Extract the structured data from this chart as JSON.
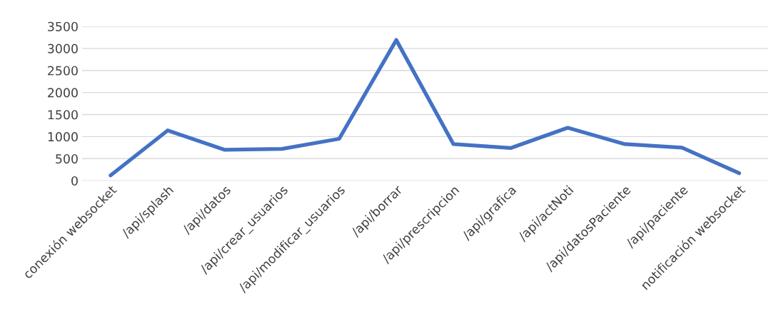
{
  "chart_data": {
    "type": "line",
    "categories": [
      "conexión websocket",
      "/api/splash",
      "/api/datos",
      "/api/crear_usuarios",
      "/api/modificar_usuarios",
      "/api/borrar",
      "/api/prescripcion",
      "/api/grafica",
      "/api/actNoti",
      "/api/datosPaciente",
      "/api/paciente",
      "notificación websocket"
    ],
    "series": [
      {
        "color": "#4472c4",
        "values": [
          120,
          1140,
          700,
          720,
          950,
          3190,
          830,
          740,
          1200,
          830,
          750,
          170
        ]
      }
    ],
    "ylim": [
      0,
      3500
    ],
    "yticks": [
      0,
      500,
      1000,
      1500,
      2000,
      2500,
      3000,
      3500
    ],
    "grid": "y",
    "legend": false,
    "marker": "none",
    "line_style": "solid"
  }
}
